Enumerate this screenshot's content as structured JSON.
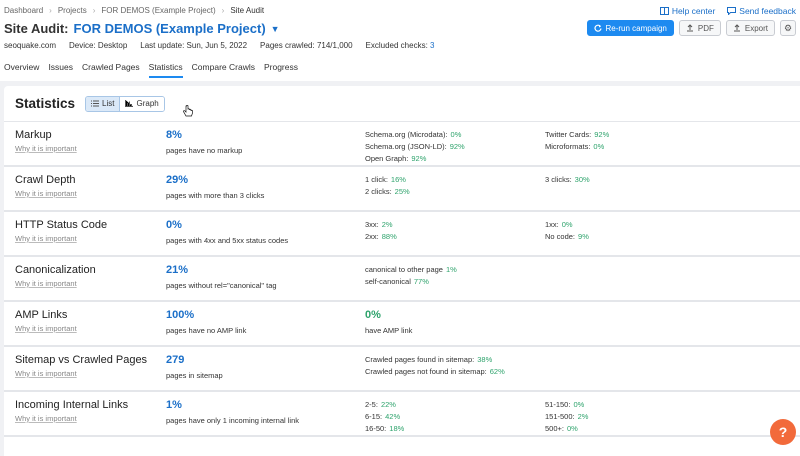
{
  "breadcrumbs": [
    "Dashboard",
    "Projects",
    "FOR DEMOS (Example Project)",
    "Site Audit"
  ],
  "top_links": {
    "help": "Help center",
    "feedback": "Send feedback"
  },
  "title": {
    "prefix": "Site Audit:",
    "project": "FOR DEMOS (Example Project)"
  },
  "actions": {
    "rerun": "Re-run campaign",
    "pdf": "PDF",
    "export": "Export"
  },
  "meta": {
    "domain": "seoquake.com",
    "device": "Device: Desktop",
    "last_update": "Last update: Sun, Jun 5, 2022",
    "pages_crawled": "Pages crawled: 714/1,000",
    "excluded_label": "Excluded checks:",
    "excluded_value": "3"
  },
  "tabs": [
    "Overview",
    "Issues",
    "Crawled Pages",
    "Statistics",
    "Compare Crawls",
    "Progress"
  ],
  "active_tab": "Statistics",
  "panel": {
    "title": "Statistics",
    "list": "List",
    "graph": "Graph"
  },
  "why": "Why it is important",
  "rows": [
    {
      "name": "Markup",
      "big": "8%",
      "desc": "pages have no markup",
      "col1": [
        {
          "l": "Schema.org (Microdata):",
          "v": "0%"
        },
        {
          "l": "Schema.org (JSON-LD):",
          "v": "92%"
        },
        {
          "l": "Open Graph:",
          "v": "92%"
        }
      ],
      "col2": [
        {
          "l": "Twitter Cards:",
          "v": "92%"
        },
        {
          "l": "Microformats:",
          "v": "0%"
        }
      ]
    },
    {
      "name": "Crawl Depth",
      "big": "29%",
      "desc": "pages with more than 3 clicks",
      "col1": [
        {
          "l": "1 click:",
          "v": "16%"
        },
        {
          "l": "2 clicks:",
          "v": "25%"
        }
      ],
      "col2": [
        {
          "l": "3 clicks:",
          "v": "30%"
        }
      ]
    },
    {
      "name": "HTTP Status Code",
      "big": "0%",
      "desc": "pages with 4xx and 5xx status codes",
      "col1": [
        {
          "l": "3xx:",
          "v": "2%"
        },
        {
          "l": "2xx:",
          "v": "88%"
        }
      ],
      "col2": [
        {
          "l": "1xx:",
          "v": "0%"
        },
        {
          "l": "No code:",
          "v": "9%"
        }
      ]
    },
    {
      "name": "Canonicalization",
      "big": "21%",
      "desc": "pages without rel=\"canonical\" tag",
      "col1": [
        {
          "l": "canonical to other page",
          "v": "1%"
        },
        {
          "l": "self-canonical",
          "v": "77%"
        }
      ],
      "col2": []
    },
    {
      "name": "AMP Links",
      "big": "100%",
      "desc": "pages have no AMP link",
      "big2": "0%",
      "desc2": "have AMP link",
      "col1": [],
      "col2": []
    },
    {
      "name": "Sitemap vs Crawled Pages",
      "big": "279",
      "desc": "pages in sitemap",
      "col1": [
        {
          "l": "Crawled pages found in sitemap:",
          "v": "38%"
        },
        {
          "l": "Crawled pages not found in sitemap:",
          "v": "62%"
        }
      ],
      "col2": []
    },
    {
      "name": "Incoming Internal Links",
      "big": "1%",
      "desc": "pages have only 1 incoming internal link",
      "col1": [
        {
          "l": "2-5:",
          "v": "22%"
        },
        {
          "l": "6-15:",
          "v": "42%"
        },
        {
          "l": "16-50:",
          "v": "18%"
        }
      ],
      "col2": [
        {
          "l": "51-150:",
          "v": "0%"
        },
        {
          "l": "151-500:",
          "v": "2%"
        },
        {
          "l": "500+:",
          "v": "0%"
        }
      ]
    }
  ],
  "help_glyph": "?"
}
